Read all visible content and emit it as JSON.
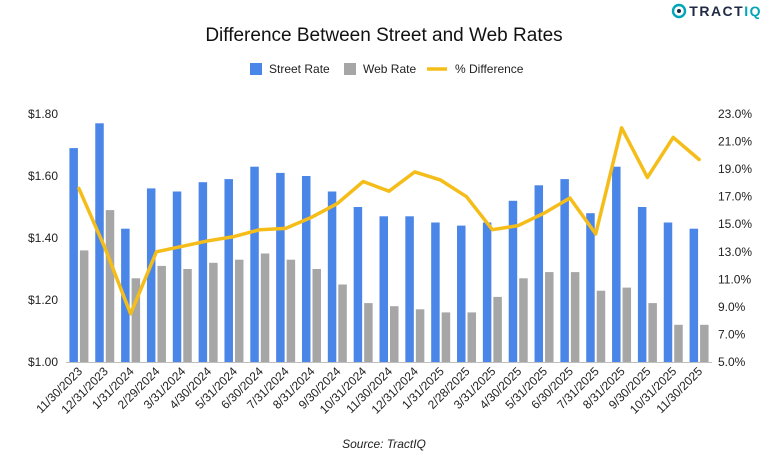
{
  "logo": {
    "text_main": "TRACT",
    "text_accent": "IQ"
  },
  "colors": {
    "street": "#4a86e8",
    "web": "#a6a6a6",
    "diff": "#f5bd1a",
    "grid": "#d9d9d9",
    "text": "#222222"
  },
  "chart_data": {
    "type": "bar",
    "title": "Difference Between Street and Web Rates",
    "source": "Source: TractIQ",
    "legend_position": "top-center",
    "categories": [
      "11/30/2023",
      "12/31/2023",
      "1/31/2024",
      "2/29/2024",
      "3/31/2024",
      "4/30/2024",
      "5/31/2024",
      "6/30/2024",
      "7/31/2024",
      "8/31/2024",
      "9/30/2024",
      "10/31/2024",
      "11/30/2024",
      "12/31/2024",
      "1/31/2025",
      "2/28/2025",
      "3/31/2025",
      "4/30/2025",
      "5/31/2025",
      "6/30/2025",
      "7/31/2025",
      "8/31/2025",
      "9/30/2025",
      "10/31/2025",
      "11/30/2025"
    ],
    "series": [
      {
        "name": "Street Rate",
        "type": "bar",
        "axis": "left",
        "color": "#4a86e8",
        "values": [
          1.69,
          1.77,
          1.43,
          1.56,
          1.55,
          1.58,
          1.59,
          1.63,
          1.61,
          1.6,
          1.55,
          1.5,
          1.47,
          1.47,
          1.45,
          1.44,
          1.45,
          1.52,
          1.57,
          1.59,
          1.48,
          1.63,
          1.5,
          1.45,
          1.43
        ]
      },
      {
        "name": "Web Rate",
        "type": "bar",
        "axis": "left",
        "color": "#a6a6a6",
        "values": [
          1.36,
          1.49,
          1.27,
          1.31,
          1.3,
          1.32,
          1.33,
          1.35,
          1.33,
          1.3,
          1.25,
          1.19,
          1.18,
          1.17,
          1.16,
          1.16,
          1.21,
          1.27,
          1.29,
          1.29,
          1.23,
          1.24,
          1.19,
          1.12,
          1.12
        ]
      },
      {
        "name": "% Difference",
        "type": "line",
        "axis": "right",
        "color": "#f5bd1a",
        "values": [
          17.6,
          13.3,
          8.5,
          13.0,
          13.4,
          13.8,
          14.1,
          14.6,
          14.7,
          15.5,
          16.5,
          18.1,
          17.4,
          18.8,
          18.2,
          17.0,
          14.6,
          14.9,
          15.8,
          16.9,
          14.3,
          22.0,
          18.4,
          21.3,
          19.7
        ]
      }
    ],
    "y_left": {
      "min": 1.0,
      "max": 1.8,
      "ticks": [
        "$1.00",
        "$1.20",
        "$1.40",
        "$1.60",
        "$1.80"
      ],
      "tick_values": [
        1.0,
        1.2,
        1.4,
        1.6,
        1.8
      ]
    },
    "y_right": {
      "min": 5.0,
      "max": 23.0,
      "ticks": [
        "5.0%",
        "7.0%",
        "9.0%",
        "11.0%",
        "13.0%",
        "15.0%",
        "17.0%",
        "19.0%",
        "21.0%",
        "23.0%"
      ],
      "tick_values": [
        5,
        7,
        9,
        11,
        13,
        15,
        17,
        19,
        21,
        23
      ]
    },
    "grid": false
  }
}
